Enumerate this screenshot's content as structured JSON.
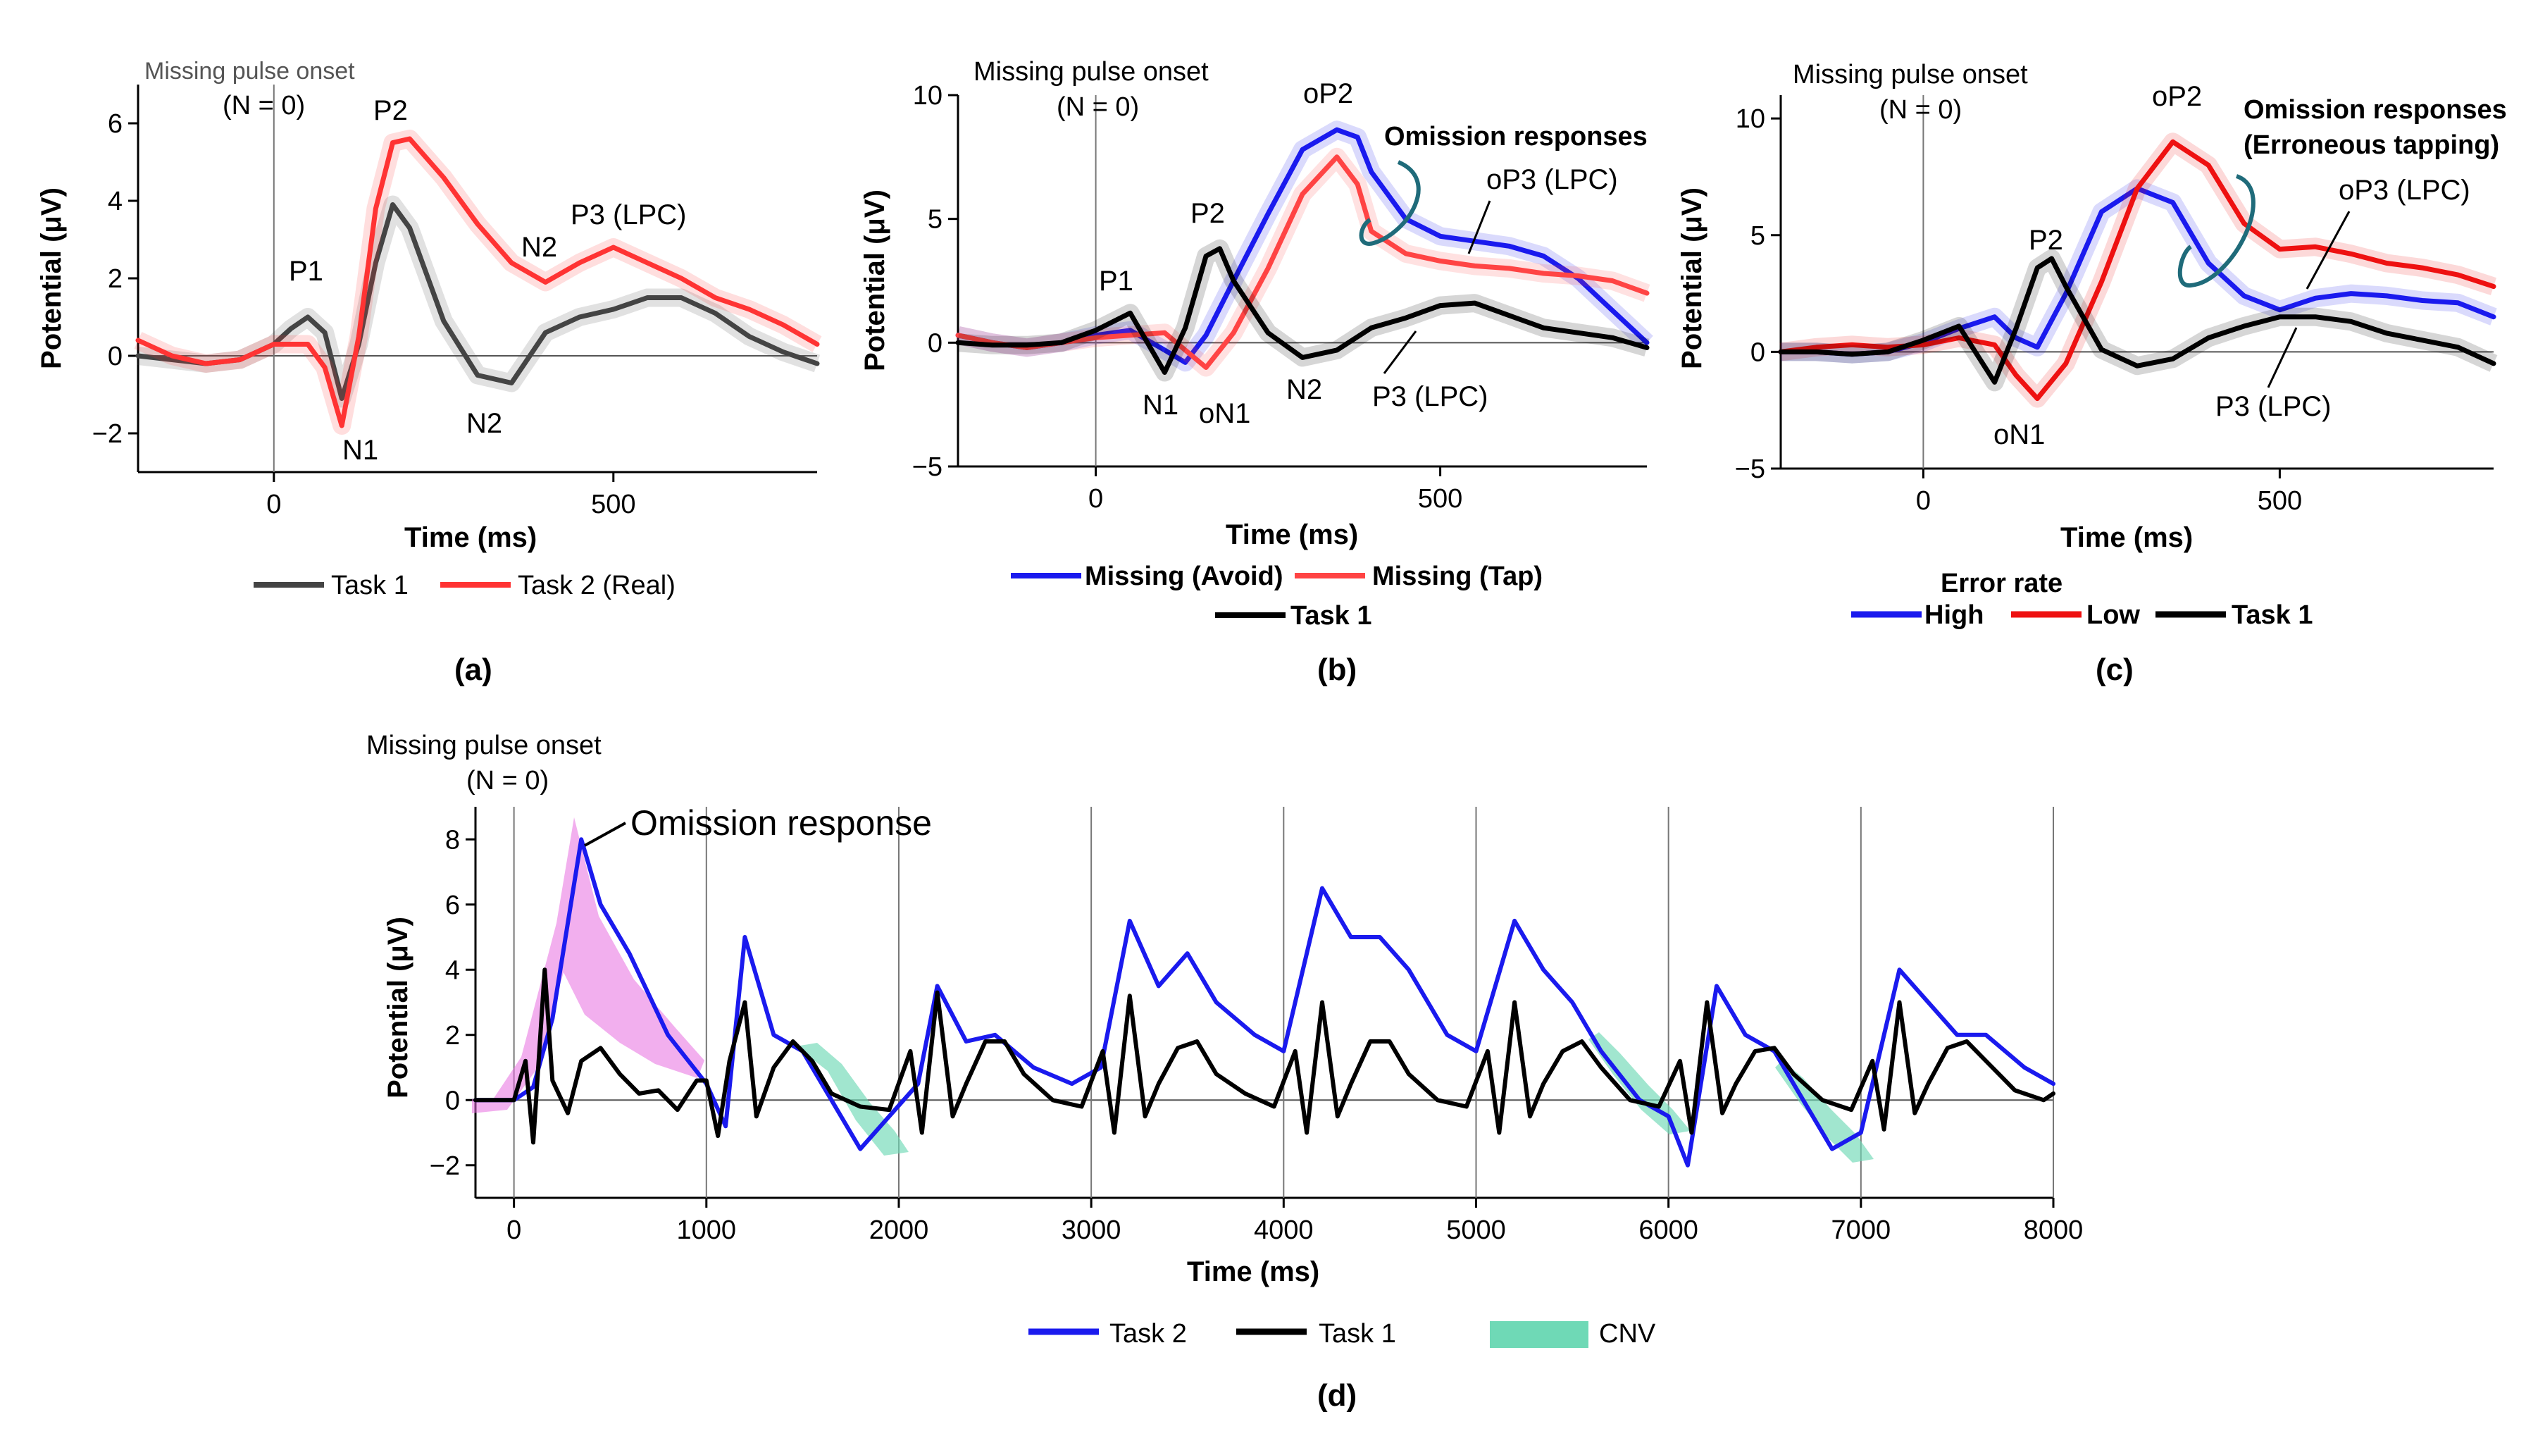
{
  "chart_data": [
    {
      "type": "line",
      "panel_label": "(a)",
      "xlabel": "Time (ms)",
      "ylabel": "Potential (μV)",
      "xlim": [
        -200,
        800
      ],
      "ylim": [
        -3,
        7
      ],
      "xticks": [
        0,
        500
      ],
      "yticks": [
        -2,
        0,
        2,
        4,
        6
      ],
      "xtick_labels": [
        "0",
        "500"
      ],
      "ytick_labels": [
        "−2",
        "0",
        "2",
        "4",
        "6"
      ],
      "onset_label": "Missing pulse onset",
      "onset_n": "(N = 0)",
      "series": [
        {
          "name": "Task 1",
          "color": "#444444",
          "x": [
            -200,
            -150,
            -100,
            -50,
            0,
            25,
            50,
            75,
            100,
            125,
            150,
            175,
            200,
            250,
            300,
            350,
            400,
            450,
            500,
            550,
            600,
            650,
            700,
            750,
            800
          ],
          "y": [
            0,
            -0.1,
            -0.2,
            -0.1,
            0.3,
            0.7,
            1.0,
            0.6,
            -1.1,
            0.3,
            2.4,
            3.9,
            3.3,
            0.9,
            -0.5,
            -0.7,
            0.6,
            1.0,
            1.2,
            1.5,
            1.5,
            1.1,
            0.5,
            0.1,
            -0.2
          ]
        },
        {
          "name": "Task 2 (Real)",
          "color": "#ff3333",
          "x": [
            -200,
            -150,
            -100,
            -50,
            0,
            25,
            50,
            75,
            100,
            125,
            150,
            175,
            200,
            250,
            300,
            350,
            400,
            450,
            500,
            550,
            600,
            650,
            700,
            750,
            800
          ],
          "y": [
            0.4,
            0,
            -0.2,
            -0.1,
            0.3,
            0.3,
            0.3,
            -0.3,
            -1.8,
            0.5,
            3.8,
            5.5,
            5.6,
            4.6,
            3.4,
            2.4,
            1.9,
            2.4,
            2.8,
            2.4,
            2.0,
            1.5,
            1.2,
            0.8,
            0.3
          ]
        }
      ],
      "annotations": [
        "P1",
        "P2",
        "N1",
        "N2",
        "N2",
        "P3 (LPC)"
      ]
    },
    {
      "type": "line",
      "panel_label": "(b)",
      "xlabel": "Time (ms)",
      "ylabel": "Potential (μV)",
      "xlim": [
        -200,
        800
      ],
      "ylim": [
        -5,
        10
      ],
      "xticks": [
        0,
        500
      ],
      "yticks": [
        -5,
        0,
        5,
        10
      ],
      "xtick_labels": [
        "0",
        "500"
      ],
      "ytick_labels": [
        "−5",
        "0",
        "5",
        "10"
      ],
      "onset_label": "Missing pulse onset",
      "onset_n": "(N = 0)",
      "series": [
        {
          "name": "Missing (Avoid)",
          "color": "#1a1aee",
          "x": [
            -200,
            -150,
            -100,
            -50,
            0,
            50,
            100,
            130,
            160,
            200,
            250,
            300,
            350,
            380,
            400,
            450,
            500,
            550,
            600,
            650,
            700,
            750,
            800
          ],
          "y": [
            0.3,
            0,
            -0.2,
            0,
            0.3,
            0.5,
            -0.3,
            -0.8,
            0.3,
            2.5,
            5.2,
            7.8,
            8.6,
            8.3,
            6.9,
            5.0,
            4.3,
            4.1,
            3.9,
            3.5,
            2.6,
            1.3,
            0
          ]
        },
        {
          "name": "Missing (Tap)",
          "color": "#ff4444",
          "x": [
            -200,
            -150,
            -100,
            -50,
            0,
            50,
            100,
            130,
            160,
            200,
            250,
            300,
            350,
            380,
            400,
            450,
            500,
            550,
            600,
            650,
            700,
            750,
            800
          ],
          "y": [
            0.3,
            0,
            -0.2,
            0,
            0.2,
            0.3,
            0.4,
            -0.3,
            -1.0,
            0.4,
            3.0,
            6.0,
            7.5,
            6.4,
            4.5,
            3.6,
            3.3,
            3.1,
            3.0,
            2.8,
            2.7,
            2.5,
            2.0
          ]
        },
        {
          "name": "Task 1",
          "color": "#000000",
          "x": [
            -200,
            -150,
            -100,
            -50,
            0,
            50,
            100,
            130,
            160,
            180,
            200,
            250,
            300,
            350,
            400,
            450,
            500,
            550,
            600,
            650,
            700,
            750,
            800
          ],
          "y": [
            0,
            -0.1,
            -0.1,
            0,
            0.5,
            1.2,
            -1.2,
            0.6,
            3.5,
            3.8,
            2.5,
            0.4,
            -0.6,
            -0.3,
            0.6,
            1.0,
            1.5,
            1.6,
            1.1,
            0.6,
            0.4,
            0.2,
            -0.2
          ]
        }
      ],
      "annotations": [
        "oP2",
        "Omission responses",
        "oP3 (LPC)",
        "P1",
        "P2",
        "N1",
        "oN1",
        "N2",
        "P3 (LPC)"
      ]
    },
    {
      "type": "line",
      "panel_label": "(c)",
      "xlabel": "Time (ms)",
      "ylabel": "Potential (μV)",
      "xlim": [
        -200,
        800
      ],
      "ylim": [
        -5,
        11
      ],
      "xticks": [
        0,
        500
      ],
      "yticks": [
        -5,
        0,
        5,
        10
      ],
      "xtick_labels": [
        "0",
        "500"
      ],
      "ytick_labels": [
        "−5",
        "0",
        "5",
        "10"
      ],
      "onset_label": "Missing pulse onset",
      "onset_n": "(N = 0)",
      "legend_title": "Error rate",
      "series": [
        {
          "name": "High",
          "color": "#1a1aee",
          "x": [
            -200,
            -150,
            -100,
            -50,
            0,
            50,
            100,
            130,
            160,
            200,
            250,
            300,
            350,
            400,
            450,
            500,
            550,
            600,
            650,
            700,
            750,
            800
          ],
          "y": [
            0,
            0,
            -0.1,
            0,
            0.4,
            1.0,
            1.5,
            0.6,
            0.2,
            2.5,
            6.0,
            7.0,
            6.4,
            3.8,
            2.4,
            1.8,
            2.3,
            2.5,
            2.4,
            2.2,
            2.1,
            1.5
          ]
        },
        {
          "name": "Low",
          "color": "#ee1111",
          "x": [
            -200,
            -150,
            -100,
            -50,
            0,
            50,
            100,
            130,
            160,
            200,
            250,
            300,
            350,
            400,
            450,
            500,
            550,
            600,
            650,
            700,
            750,
            800
          ],
          "y": [
            0,
            0.2,
            0.3,
            0.2,
            0.3,
            0.6,
            0.3,
            -1.0,
            -2.0,
            -0.5,
            3.0,
            7.0,
            9.0,
            8.0,
            5.5,
            4.4,
            4.5,
            4.2,
            3.8,
            3.6,
            3.3,
            2.8
          ]
        },
        {
          "name": "Task 1",
          "color": "#000000",
          "x": [
            -200,
            -150,
            -100,
            -50,
            0,
            50,
            100,
            130,
            160,
            180,
            200,
            250,
            300,
            350,
            400,
            450,
            500,
            550,
            600,
            650,
            700,
            750,
            800
          ],
          "y": [
            0,
            0,
            -0.1,
            0,
            0.5,
            1.1,
            -1.3,
            1.0,
            3.6,
            4.0,
            2.8,
            0.1,
            -0.6,
            -0.3,
            0.6,
            1.1,
            1.5,
            1.5,
            1.3,
            0.8,
            0.5,
            0.2,
            -0.5
          ]
        }
      ],
      "annotations": [
        "oP2",
        "Omission responses",
        "(Erroneous tapping)",
        "oP3 (LPC)",
        "P2",
        "oN1",
        "P3 (LPC)"
      ]
    },
    {
      "type": "line",
      "panel_label": "(d)",
      "xlabel": "Time (ms)",
      "ylabel": "Potential (μV)",
      "xlim": [
        -200,
        8000
      ],
      "ylim": [
        -3,
        9
      ],
      "xticks": [
        0,
        1000,
        2000,
        3000,
        4000,
        5000,
        6000,
        7000,
        8000
      ],
      "yticks": [
        -2,
        0,
        2,
        4,
        6,
        8
      ],
      "xtick_labels": [
        "0",
        "1000",
        "2000",
        "3000",
        "4000",
        "5000",
        "6000",
        "7000",
        "8000"
      ],
      "ytick_labels": [
        "−2",
        "0",
        "2",
        "4",
        "6",
        "8"
      ],
      "onset_label": "Missing pulse onset",
      "onset_n": "(N = 0)",
      "series": [
        {
          "name": "Task 2",
          "color": "#1a1aee",
          "x": [
            -200,
            0,
            100,
            200,
            350,
            450,
            600,
            800,
            1000,
            1100,
            1200,
            1350,
            1500,
            1600,
            1800,
            1950,
            2100,
            2200,
            2350,
            2500,
            2700,
            2900,
            3050,
            3200,
            3350,
            3500,
            3650,
            3850,
            4000,
            4200,
            4350,
            4500,
            4650,
            4850,
            5000,
            5200,
            5350,
            5500,
            5650,
            5850,
            6000,
            6100,
            6250,
            6400,
            6550,
            6700,
            6850,
            7000,
            7200,
            7350,
            7500,
            7650,
            7850,
            8000
          ],
          "y": [
            0,
            0,
            0.4,
            2.5,
            8.0,
            6.0,
            4.5,
            2.0,
            0.5,
            -0.8,
            5.0,
            2.0,
            1.5,
            0.5,
            -1.5,
            -0.5,
            0.5,
            3.5,
            1.8,
            2.0,
            1.0,
            0.5,
            1.0,
            5.5,
            3.5,
            4.5,
            3.0,
            2.0,
            1.5,
            6.5,
            5.0,
            5.0,
            4.0,
            2.0,
            1.5,
            5.5,
            4.0,
            3.0,
            1.5,
            0,
            -0.5,
            -2.0,
            3.5,
            2.0,
            1.5,
            0,
            -1.5,
            -1.0,
            4.0,
            3.0,
            2.0,
            2.0,
            1.0,
            0.5
          ]
        },
        {
          "name": "Task 1",
          "color": "#000000",
          "x": [
            -200,
            0,
            60,
            100,
            160,
            200,
            280,
            350,
            450,
            550,
            650,
            750,
            850,
            950,
            1000,
            1060,
            1120,
            1200,
            1260,
            1350,
            1450,
            1550,
            1650,
            1800,
            1950,
            2060,
            2120,
            2200,
            2280,
            2350,
            2450,
            2550,
            2650,
            2800,
            2950,
            3060,
            3120,
            3200,
            3280,
            3350,
            3450,
            3550,
            3650,
            3800,
            3950,
            4060,
            4120,
            4200,
            4280,
            4350,
            4450,
            4550,
            4650,
            4800,
            4950,
            5060,
            5120,
            5200,
            5280,
            5350,
            5450,
            5550,
            5650,
            5800,
            5950,
            6060,
            6120,
            6200,
            6280,
            6350,
            6450,
            6550,
            6650,
            6800,
            6950,
            7060,
            7120,
            7200,
            7280,
            7350,
            7450,
            7550,
            7650,
            7800,
            7950,
            8000
          ],
          "y": [
            0,
            0,
            1.2,
            -1.3,
            4.0,
            0.6,
            -0.4,
            1.2,
            1.6,
            0.8,
            0.2,
            0.3,
            -0.3,
            0.6,
            0.6,
            -1.1,
            1.2,
            3.0,
            -0.5,
            1.0,
            1.8,
            1.2,
            0.2,
            -0.2,
            -0.3,
            1.5,
            -1.0,
            3.3,
            -0.5,
            0.5,
            1.8,
            1.8,
            0.8,
            0.0,
            -0.2,
            1.5,
            -1.0,
            3.2,
            -0.5,
            0.5,
            1.6,
            1.8,
            0.8,
            0.2,
            -0.2,
            1.5,
            -1.0,
            3.0,
            -0.5,
            0.5,
            1.8,
            1.8,
            0.8,
            0.0,
            -0.2,
            1.5,
            -1.0,
            3.0,
            -0.5,
            0.5,
            1.5,
            1.8,
            1.0,
            0.0,
            -0.2,
            1.2,
            -1.0,
            3.0,
            -0.4,
            0.5,
            1.5,
            1.6,
            0.8,
            0.0,
            -0.3,
            1.2,
            -0.9,
            3.0,
            -0.4,
            0.5,
            1.6,
            1.8,
            1.2,
            0.3,
            0.0,
            0.2
          ]
        }
      ],
      "highlight_name": "CNV",
      "highlight_color": "#6fd9b6",
      "annotations": [
        "Omission response"
      ]
    }
  ]
}
